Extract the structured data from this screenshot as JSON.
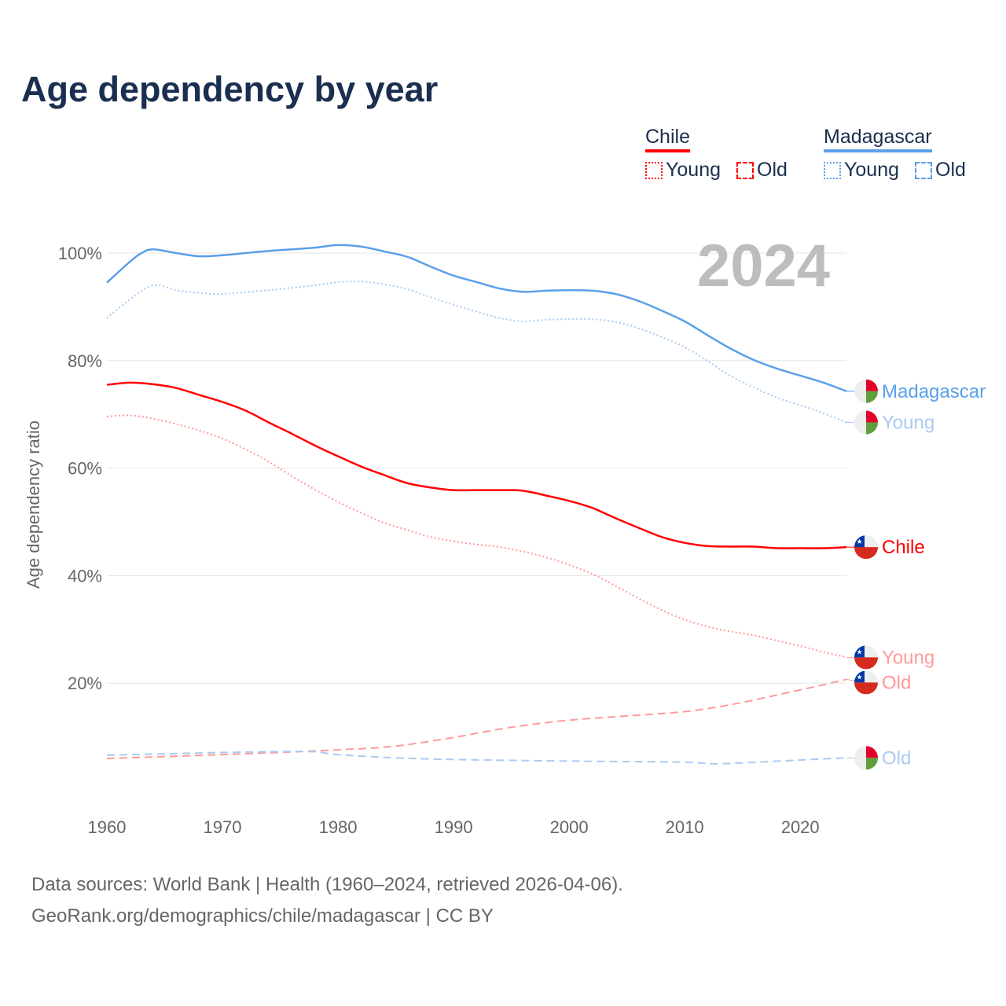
{
  "title": "Age dependency by year",
  "year_label": "2024",
  "legend": [
    {
      "name": "Chile",
      "color": "#ff0000",
      "young": "Young",
      "old": "Old"
    },
    {
      "name": "Madagascar",
      "color": "#5aa0e8",
      "young": "Young",
      "old": "Old"
    }
  ],
  "footer": {
    "line1": "Data sources: World Bank | Health (1960–2024, retrieved 2026-04-06).",
    "line2": "GeoRank.org/demographics/chile/madagascar | CC BY"
  },
  "chart_data": {
    "type": "line",
    "title": "Age dependency by year",
    "xlabel": "",
    "ylabel": "Age dependency ratio",
    "xlim": [
      1960,
      2024
    ],
    "ylim": [
      0,
      100
    ],
    "xticks": [
      "1960",
      "1970",
      "1980",
      "1990",
      "2000",
      "2010",
      "2020"
    ],
    "yticks": [
      "20%",
      "40%",
      "60%",
      "80%",
      "100%"
    ],
    "grid": true,
    "series": [
      {
        "name": "Madagascar",
        "label": "Madagascar",
        "country": "madagascar",
        "style": "solid",
        "color": "#5aa0e8",
        "x": [
          1960,
          1962,
          1963,
          1964,
          1966,
          1968,
          1970,
          1972,
          1974,
          1976,
          1978,
          1980,
          1982,
          1984,
          1986,
          1988,
          1990,
          1992,
          1994,
          1996,
          1998,
          2000,
          2002,
          2004,
          2006,
          2008,
          2010,
          2012,
          2014,
          2016,
          2018,
          2020,
          2022,
          2024
        ],
        "y": [
          94.5,
          98.4,
          100,
          100.7,
          100,
          99.4,
          99.6,
          100,
          100.4,
          100.7,
          101,
          101.5,
          101.2,
          100.3,
          99.3,
          97.5,
          95.8,
          94.6,
          93.4,
          92.8,
          93,
          93.1,
          93,
          92.4,
          91.1,
          89.3,
          87.3,
          84.7,
          82.2,
          80.1,
          78.5,
          77.2,
          75.9,
          74.3
        ]
      },
      {
        "name": "Madagascar Young",
        "label": "Young",
        "country": "madagascar",
        "style": "dotted",
        "color": "#a9cbf2",
        "x": [
          1960,
          1962,
          1964,
          1966,
          1968,
          1970,
          1974,
          1978,
          1980,
          1982,
          1984,
          1986,
          1988,
          1990,
          1992,
          1994,
          1996,
          1998,
          2000,
          2002,
          2004,
          2006,
          2008,
          2010,
          2012,
          2014,
          2016,
          2018,
          2020,
          2022,
          2024
        ],
        "y": [
          87.9,
          91.4,
          94,
          93.1,
          92.6,
          92.4,
          93.1,
          94,
          94.6,
          94.7,
          94.2,
          93.3,
          91.8,
          90.4,
          89.1,
          87.9,
          87.3,
          87.6,
          87.7,
          87.7,
          87.2,
          86,
          84.4,
          82.5,
          79.9,
          77.1,
          75,
          73.1,
          71.7,
          70.2,
          68.5
        ]
      },
      {
        "name": "Chile",
        "label": "Chile",
        "country": "chile",
        "style": "solid",
        "color": "#ff0000",
        "x": [
          1960,
          1962,
          1964,
          1966,
          1968,
          1970,
          1972,
          1974,
          1976,
          1978,
          1980,
          1982,
          1984,
          1986,
          1988,
          1990,
          1992,
          1994,
          1996,
          1998,
          2000,
          2002,
          2004,
          2006,
          2008,
          2010,
          2012,
          2014,
          2016,
          2018,
          2020,
          2022,
          2024
        ],
        "y": [
          75.5,
          75.9,
          75.6,
          74.9,
          73.6,
          72.3,
          70.7,
          68.5,
          66.4,
          64.2,
          62.2,
          60.3,
          58.7,
          57.2,
          56.4,
          55.9,
          55.9,
          55.9,
          55.8,
          54.9,
          53.9,
          52.6,
          50.7,
          48.9,
          47.2,
          46.1,
          45.5,
          45.4,
          45.4,
          45.1,
          45.1,
          45.1,
          45.3
        ]
      },
      {
        "name": "Chile Young",
        "label": "Young",
        "country": "chile",
        "style": "dotted",
        "color": "#ff9a9a",
        "x": [
          1960,
          1962,
          1964,
          1966,
          1968,
          1970,
          1972,
          1974,
          1976,
          1978,
          1980,
          1982,
          1984,
          1986,
          1988,
          1990,
          1992,
          1994,
          1996,
          1998,
          2000,
          2002,
          2004,
          2006,
          2008,
          2010,
          2012,
          2014,
          2016,
          2018,
          2020,
          2022,
          2024
        ],
        "y": [
          69.6,
          69.8,
          69.2,
          68.2,
          67,
          65.5,
          63.5,
          61.2,
          58.5,
          56,
          53.7,
          51.7,
          49.8,
          48.5,
          47.2,
          46.4,
          45.8,
          45.3,
          44.5,
          43.4,
          42,
          40.3,
          38.1,
          35.8,
          33.6,
          31.8,
          30.5,
          29.6,
          28.9,
          27.9,
          26.9,
          25.8,
          24.8
        ]
      },
      {
        "name": "Chile Old",
        "label": "Old",
        "country": "chile",
        "style": "dashed",
        "color": "#ff9a9a",
        "x": [
          1960,
          1970,
          1980,
          1985,
          1990,
          1995,
          2000,
          2005,
          2010,
          2014,
          2018,
          2022,
          2024
        ],
        "y": [
          6.0,
          6.7,
          7.6,
          8.3,
          9.9,
          11.8,
          13.1,
          13.9,
          14.7,
          16,
          17.8,
          19.7,
          20.7
        ]
      },
      {
        "name": "Madagascar Old",
        "label": "Old",
        "country": "madagascar",
        "style": "dashed",
        "color": "#a9cbf2",
        "x": [
          1960,
          1976,
          1980,
          1985,
          1990,
          2000,
          2010,
          2013,
          2020,
          2024
        ],
        "y": [
          6.6,
          7.3,
          6.7,
          6.1,
          5.8,
          5.5,
          5.3,
          5.0,
          5.7,
          6.1
        ]
      }
    ]
  }
}
